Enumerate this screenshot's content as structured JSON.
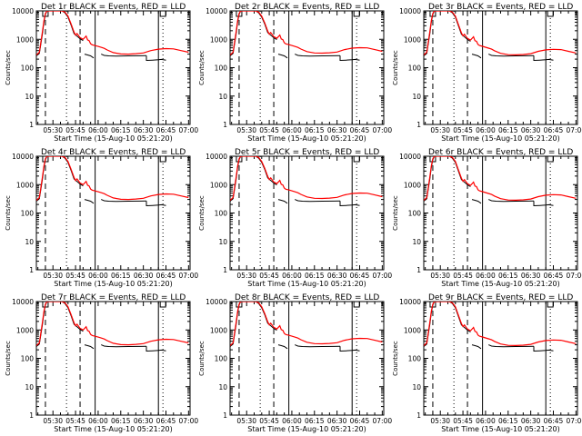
{
  "chart_data": [
    {
      "title": "Det 1r BLACK = Events, RED = LLD",
      "variant": 1
    },
    {
      "title": "Det 2r BLACK = Events, RED = LLD",
      "variant": 2
    },
    {
      "title": "Det 3r BLACK = Events, RED = LLD",
      "variant": 3
    },
    {
      "title": "Det 4r BLACK = Events, RED = LLD",
      "variant": 1
    },
    {
      "title": "Det 5r BLACK = Events, RED = LLD",
      "variant": 2
    },
    {
      "title": "Det 6r BLACK = Events, RED = LLD",
      "variant": 3
    },
    {
      "title": "Det 7r BLACK = Events, RED = LLD",
      "variant": 1
    },
    {
      "title": "Det 8r BLACK = Events, RED = LLD",
      "variant": 2
    },
    {
      "title": "Det 9r BLACK = Events, RED = LLD",
      "variant": 3
    }
  ],
  "shared": {
    "type": "line",
    "x_axis_title": "Start Time (15-Aug-10 05:21:20)",
    "y_axis_title": "Counts/sec",
    "x_tick_labels": [
      "05:30",
      "05:45",
      "06:00",
      "06:15",
      "06:30",
      "06:45",
      "07:00"
    ],
    "x_tick_minutes": [
      30,
      45,
      60,
      75,
      90,
      105,
      120
    ],
    "x_range_minutes": [
      19,
      121
    ],
    "y_tick_labels": [
      "1",
      "10",
      "100",
      "1000",
      "10000"
    ],
    "y_range": [
      1,
      10000
    ],
    "y_scale": "log",
    "colors": {
      "events": "#000000",
      "lld": "#ff0000"
    },
    "series_legend": {
      "events": "BLACK",
      "lld": "RED"
    },
    "lld_series": {
      "x": [
        19,
        21,
        23,
        24,
        25,
        26,
        27,
        28,
        29,
        30,
        32,
        34,
        36,
        38,
        40,
        42,
        44,
        45,
        46,
        48,
        50,
        52,
        53,
        54,
        55,
        56,
        58,
        60,
        62,
        64,
        66,
        70,
        75,
        80,
        85,
        90,
        95,
        100,
        105,
        110,
        115,
        120
      ],
      "y": [
        280,
        350,
        1800,
        4500,
        8000,
        10000,
        10000,
        10000,
        10000,
        10000,
        10000,
        10000,
        10000,
        9000,
        6500,
        3500,
        1800,
        1400,
        1600,
        1150,
        1000,
        1300,
        950,
        900,
        700,
        640,
        600,
        560,
        520,
        480,
        420,
        340,
        305,
        300,
        310,
        330,
        400,
        450,
        470,
        460,
        400,
        350
      ]
    },
    "events_series": {
      "x": [
        19,
        21,
        23,
        24,
        25,
        26,
        27,
        28,
        29,
        30,
        32,
        34,
        36,
        38,
        40,
        42,
        44,
        46,
        48,
        50
      ],
      "y": [
        260,
        320,
        1500,
        4000,
        7500,
        9800,
        10000,
        10000,
        10000,
        10000,
        10000,
        10000,
        10000,
        8500,
        6000,
        3200,
        1600,
        1300,
        1050,
        900
      ]
    },
    "events_segments": [
      {
        "x": [
          51,
          53,
          55,
          57
        ],
        "y": [
          300,
          280,
          260,
          220
        ]
      },
      {
        "x": [
          62,
          64,
          67,
          72,
          80,
          88,
          92
        ],
        "y": [
          300,
          270,
          260,
          255,
          260,
          262,
          265
        ]
      },
      {
        "x": [
          92,
          92,
          96,
          100,
          102,
          105
        ],
        "y": [
          265,
          180,
          185,
          190,
          195,
          185
        ]
      }
    ],
    "vertical_lines": {
      "dashed": [
        25,
        48
      ],
      "dotted": [
        39,
        103
      ],
      "solid": [
        58,
        100
      ]
    },
    "top_markers_minutes": [
      25,
      103
    ]
  }
}
